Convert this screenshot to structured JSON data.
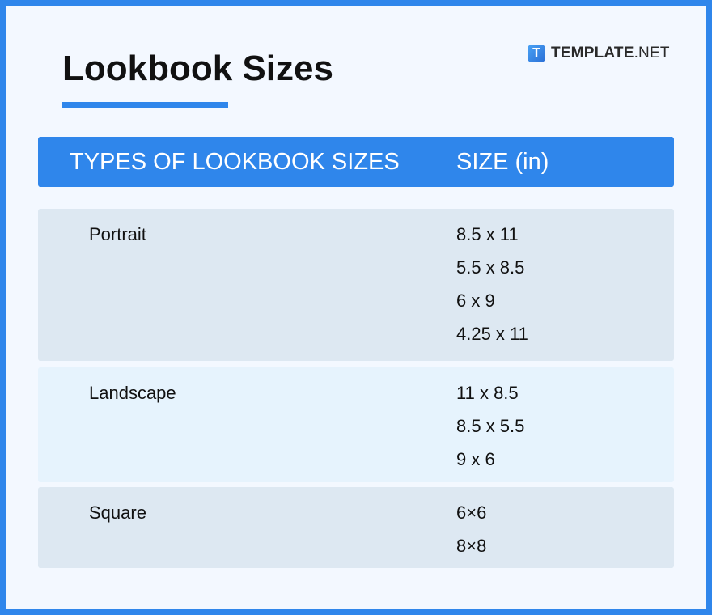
{
  "title": "Lookbook Sizes",
  "logo": {
    "icon_letter": "T",
    "brand_bold": "TEMPLATE",
    "brand_suffix": ".NET"
  },
  "colors": {
    "accent": "#2f86eb",
    "row_dark": "#dde8f2",
    "row_light": "#e6f3fd",
    "background": "#f3f8ff"
  },
  "table": {
    "headers": [
      "TYPES OF LOOKBOOK SIZES",
      "SIZE (in)"
    ],
    "rows": [
      {
        "type": "Portrait",
        "sizes": [
          "8.5 x 11",
          "5.5 x 8.5",
          "6 x 9",
          "4.25 x 11"
        ]
      },
      {
        "type": "Landscape",
        "sizes": [
          "11 x 8.5",
          "8.5 x 5.5",
          "9 x 6"
        ]
      },
      {
        "type": "Square",
        "sizes": [
          "6×6",
          "8×8"
        ]
      }
    ]
  }
}
